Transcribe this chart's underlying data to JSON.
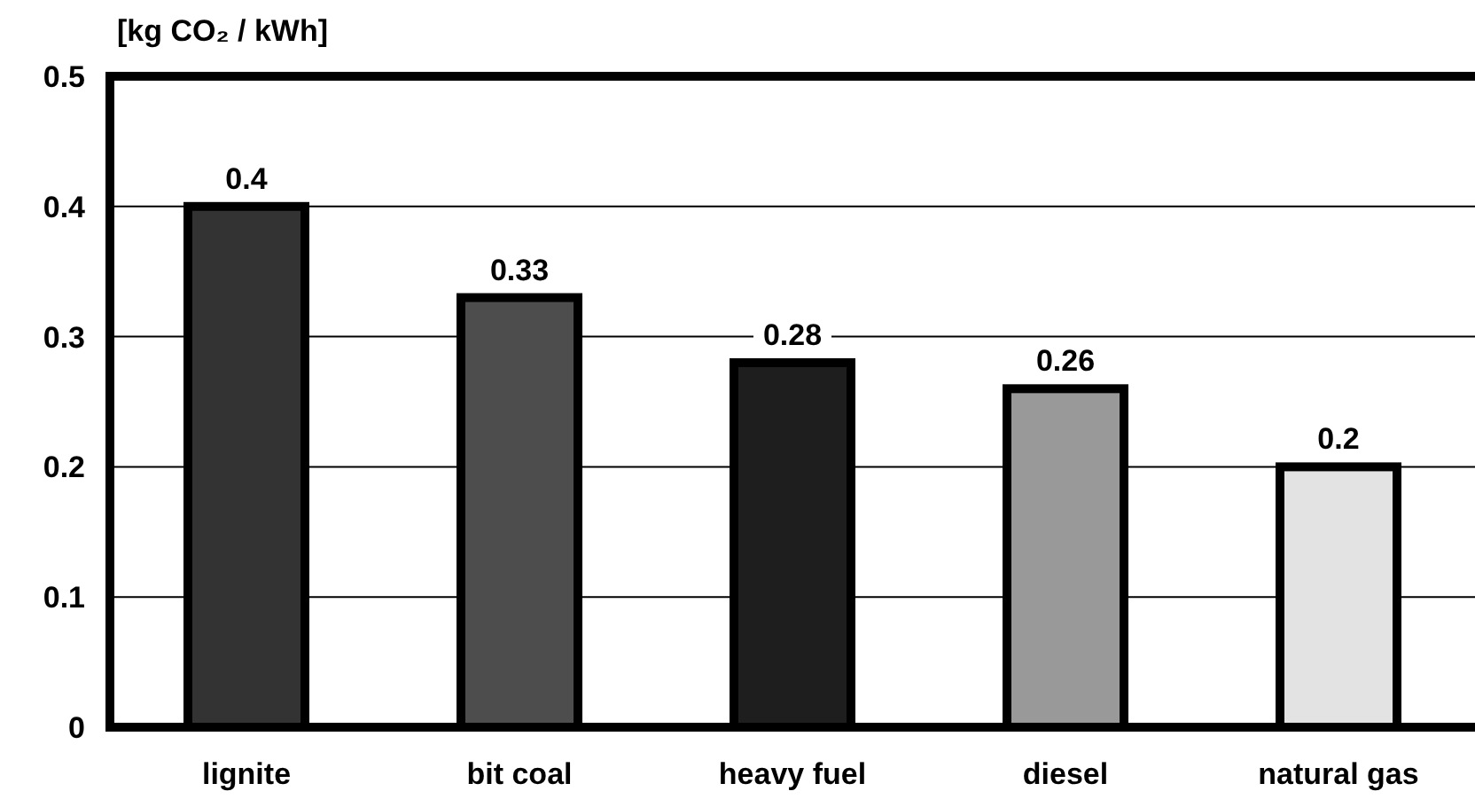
{
  "chart_data": {
    "type": "bar",
    "ylabel": "[kg CO₂ / kWh]",
    "categories": [
      "lignite",
      "bit coal",
      "heavy fuel",
      "diesel",
      "natural gas"
    ],
    "values": [
      0.4,
      0.33,
      0.28,
      0.26,
      0.2
    ],
    "colors": [
      "#333333",
      "#4d4d4d",
      "#1e1e1e",
      "#999999",
      "#e3e3e3"
    ],
    "ylim": [
      0,
      0.5
    ],
    "yticks": [
      0,
      0.1,
      0.2,
      0.3,
      0.4,
      0.5
    ],
    "grid": "y",
    "data_labels": true
  }
}
